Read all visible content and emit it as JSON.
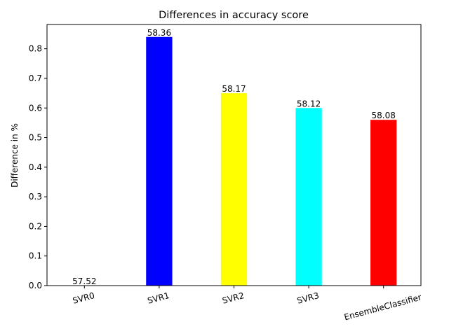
{
  "chart_data": {
    "type": "bar",
    "title": "Differences in accuracy score",
    "xlabel": "",
    "ylabel": "Difference in %",
    "categories": [
      "SVR0",
      "SVR1",
      "SVR2",
      "SVR3",
      "EnsembleClassifier"
    ],
    "values": [
      0.0,
      0.84,
      0.65,
      0.6,
      0.56
    ],
    "bar_labels": [
      "57.52",
      "58.36",
      "58.17",
      "58.12",
      "58.08"
    ],
    "colors": [
      "#ffffff",
      "#0000ff",
      "#ffff00",
      "#00ffff",
      "#ff0000"
    ],
    "ylim": [
      0,
      0.882
    ],
    "yticks": [
      "0.0",
      "0.1",
      "0.2",
      "0.3",
      "0.4",
      "0.5",
      "0.6",
      "0.7",
      "0.8"
    ],
    "xtick_rotation_deg": 15,
    "grid": false,
    "legend": "none"
  }
}
